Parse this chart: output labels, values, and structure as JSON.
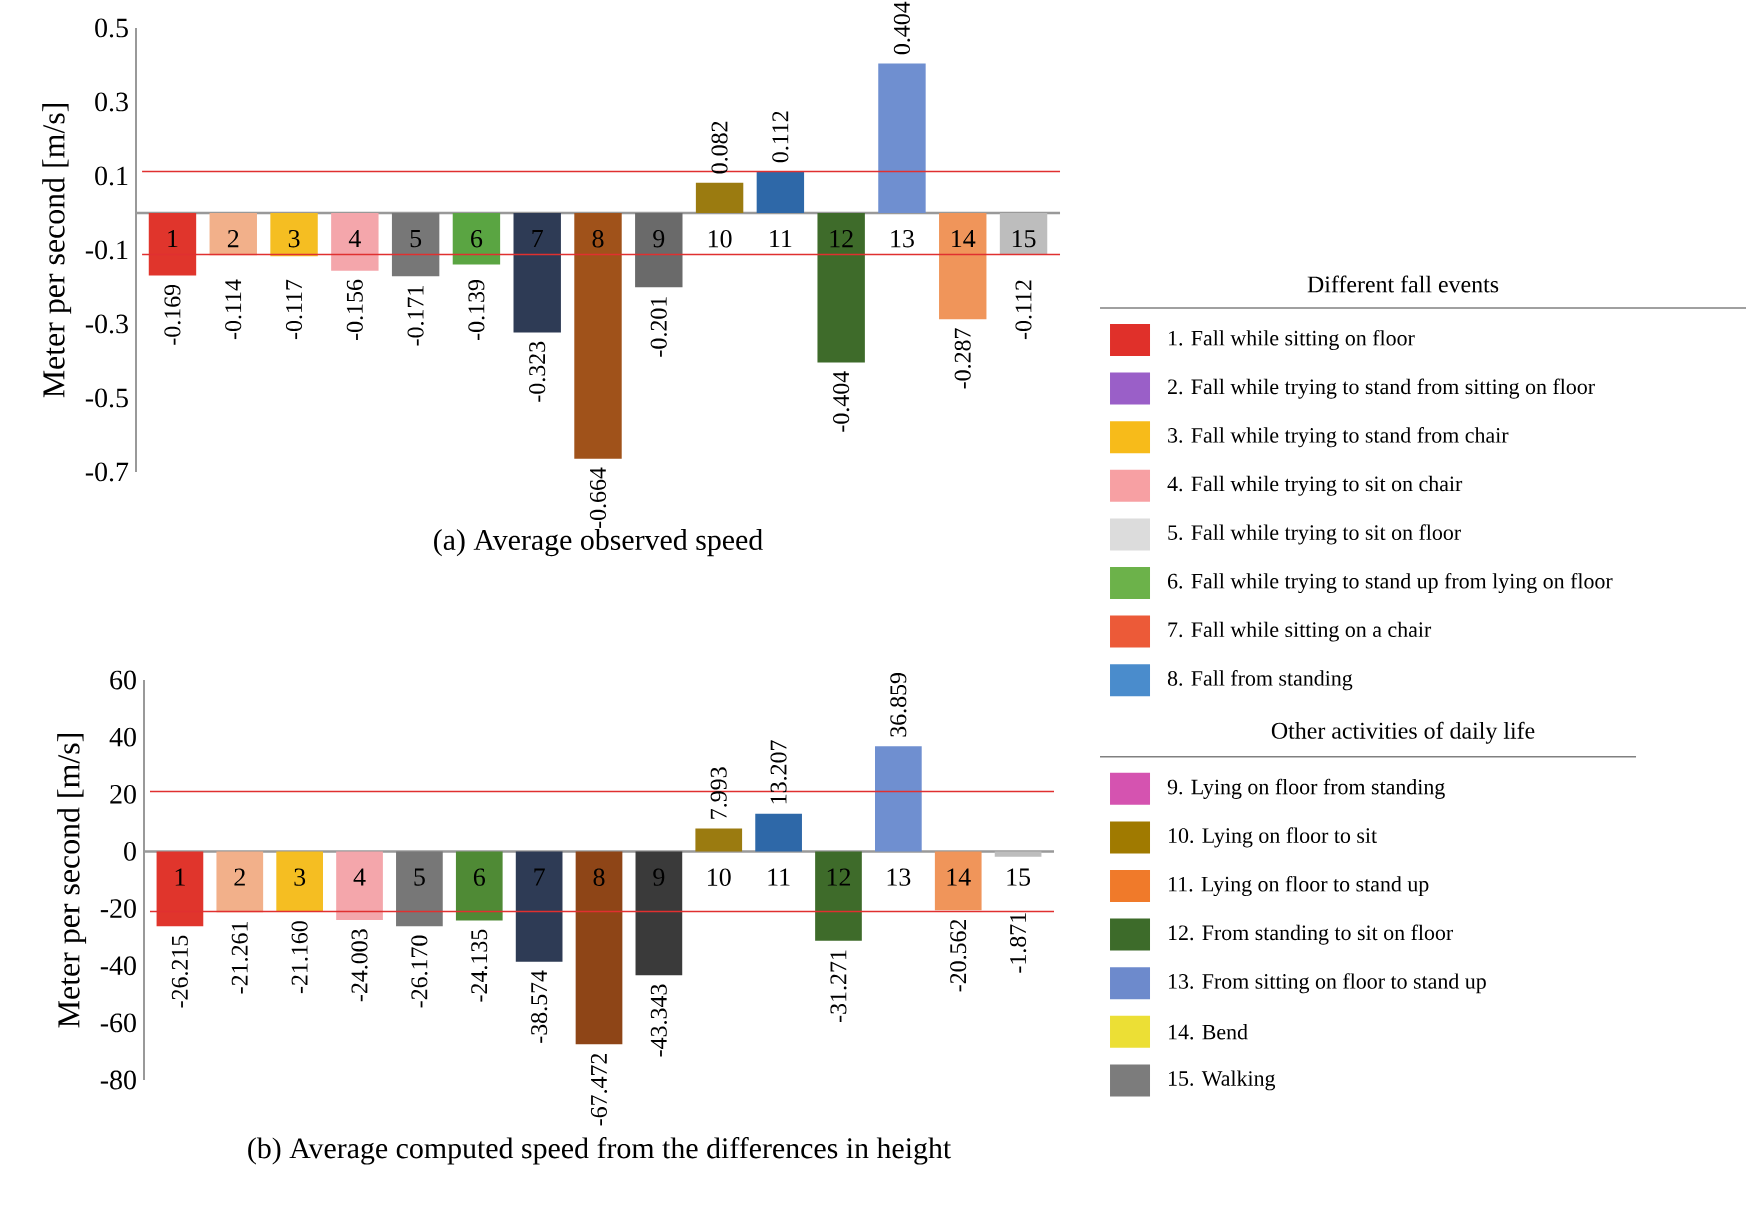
{
  "chart_data": [
    {
      "type": "bar",
      "title": "(a) Average observed speed",
      "ylabel": "Meter per second [m/s]",
      "categories": [
        "1",
        "2",
        "3",
        "4",
        "5",
        "6",
        "7",
        "8",
        "9",
        "10",
        "11",
        "12",
        "13",
        "14",
        "15"
      ],
      "values": [
        -0.169,
        -0.114,
        -0.117,
        -0.156,
        -0.171,
        -0.139,
        -0.323,
        -0.664,
        -0.201,
        0.082,
        0.112,
        -0.404,
        0.404,
        -0.287,
        -0.112
      ],
      "value_labels": [
        "-0.169",
        "-0.114",
        "-0.117",
        "-0.156",
        "-0.171",
        "-0.139",
        "-0.323",
        "-0.664",
        "-0.201",
        "0.082",
        "0.112",
        "-0.404",
        "0.404",
        "-0.287",
        "-0.112"
      ],
      "colors": [
        "#e0352c",
        "#f2b08a",
        "#f5be22",
        "#f4a6ab",
        "#777777",
        "#5aa542",
        "#2e3b55",
        "#a0521a",
        "#6a6a6a",
        "#9b7b10",
        "#2e68a8",
        "#3e6b2a",
        "#6f8fd0",
        "#f0955a",
        "#bdbdbd"
      ],
      "ylim": [
        -0.7,
        0.5
      ],
      "yticks": [
        -0.7,
        -0.5,
        -0.3,
        -0.1,
        0.1,
        0.3,
        0.5
      ],
      "ref_lines": [
        {
          "axis": "y",
          "value": 0.112,
          "color": "#e03030"
        },
        {
          "axis": "y",
          "value": -0.112,
          "color": "#e03030"
        }
      ]
    },
    {
      "type": "bar",
      "title": "(b) Average computed speed from the differences in height",
      "ylabel": "Meter per second [m/s]",
      "categories": [
        "1",
        "2",
        "3",
        "4",
        "5",
        "6",
        "7",
        "8",
        "9",
        "10",
        "11",
        "12",
        "13",
        "14",
        "15"
      ],
      "values": [
        -26.215,
        -21.261,
        -21.16,
        -24.003,
        -26.17,
        -24.135,
        -38.574,
        -67.472,
        -43.343,
        7.993,
        13.207,
        -31.271,
        36.859,
        -20.562,
        -1.871
      ],
      "value_labels": [
        "-26.215",
        "-21.261",
        "-21.160",
        "-24.003",
        "-26.170",
        "-24.135",
        "-38.574",
        "-67.472",
        "-43.343",
        "7.993",
        "13.207",
        "-31.271",
        "36.859",
        "-20.562",
        "-1.871"
      ],
      "colors": [
        "#e0352c",
        "#f2b08a",
        "#f5be22",
        "#f4a6ab",
        "#777777",
        "#4f8a35",
        "#2e3b55",
        "#8e4517",
        "#3a3a3a",
        "#9b7b10",
        "#2e68a8",
        "#3e6b2a",
        "#6f8fd0",
        "#f0955a",
        "#bdbdbd"
      ],
      "ylim": [
        -80,
        60
      ],
      "yticks": [
        -80,
        -60,
        -40,
        -20,
        0,
        20,
        40,
        60
      ],
      "ref_lines": [
        {
          "axis": "y",
          "value": 21,
          "color": "#e03030"
        },
        {
          "axis": "y",
          "value": -21,
          "color": "#e03030"
        }
      ]
    },
    {
      "type": "other",
      "title": "Different fall events",
      "annotations": [
        "Other activities of daily life"
      ],
      "categories": [
        "1. Fall while sitting on floor",
        "2. Fall while trying to stand from sitting on floor",
        "3. Fall while trying to stand from chair",
        "4. Fall while trying to sit on chair",
        "5. Fall while trying to sit on floor",
        "6. Fall while trying to stand up from lying on floor",
        "7. Fall while sitting on a chair",
        "8. Fall from standing",
        "9. Lying on floor from standing",
        "10. Lying on floor to sit",
        "11. Lying on floor to stand up",
        "12. From standing to sit on floor",
        "13. From sitting on floor to stand up",
        "14. Bend",
        "15. Walking"
      ],
      "colors": [
        "#e0302a",
        "#9a5fc8",
        "#f7bb1a",
        "#f7a0a3",
        "#dcdcdc",
        "#6cb24a",
        "#ec5a38",
        "#4a8ccc",
        "#d553b0",
        "#a07a00",
        "#f07a2a",
        "#3d6b2a",
        "#6d8acc",
        "#ecdf35",
        "#7c7c7c"
      ]
    }
  ]
}
